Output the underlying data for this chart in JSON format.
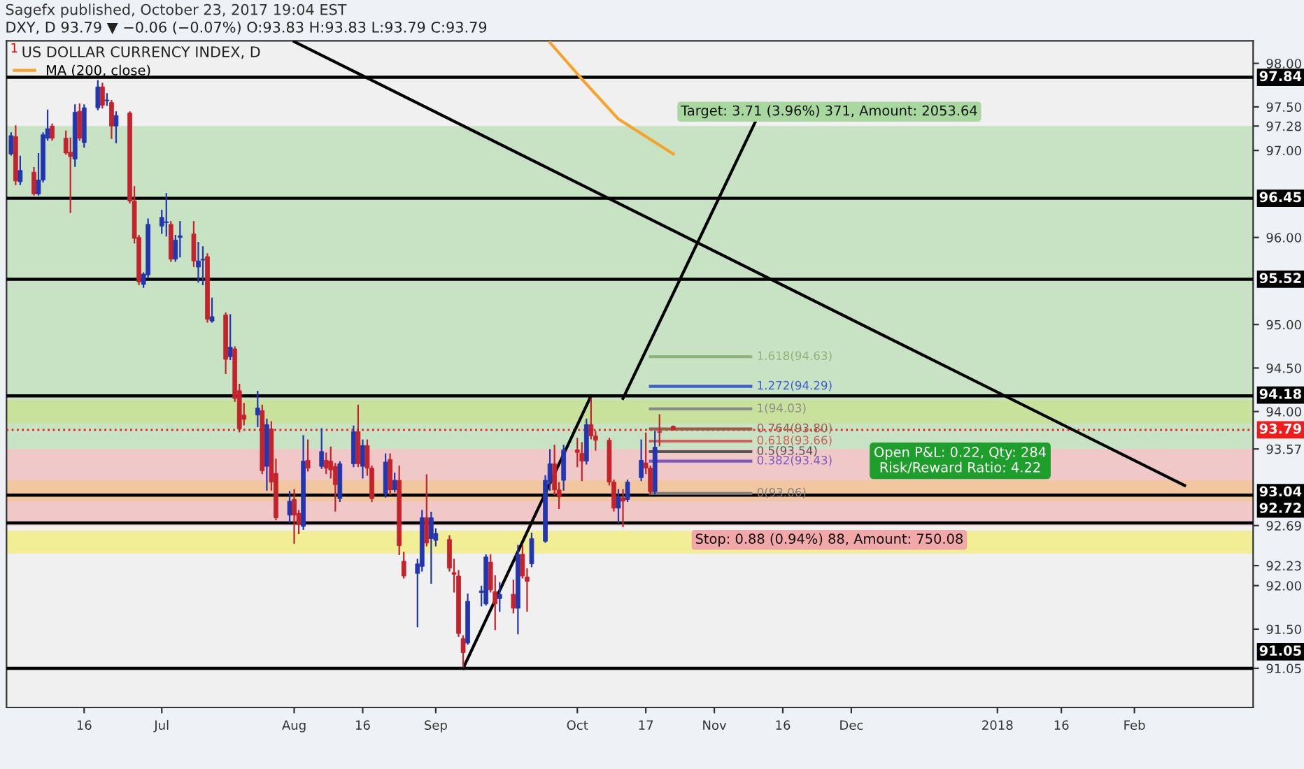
{
  "chart_data": {
    "type": "candlestick",
    "title": "US DOLLAR CURRENCY INDEX, D",
    "subtitle": "DXY, D 93.79 ▼ −0.06 (−0.07%) O:93.83 H:93.83 L:93.79 C:93.79",
    "annotations": [
      "Sagefx published, October 23, 2017 19:04 EST",
      "1",
      "Open P&L: 0.22, Qty: 284\nRisk/Reward Ratio: 4.22"
    ],
    "colors": [
      "#2236b0",
      "#c4232b",
      "#2236b0",
      "#c4232b",
      "#2236b0",
      "#2236b0",
      "#2236b0",
      "#c4232b",
      "#c4232b",
      "#c4232b",
      "#2236b0",
      "#c4232b",
      "#2236b0",
      "#2236b0",
      "#c4232b",
      "#2236b0",
      "#c4232b",
      "#2236b0",
      "#c4232b",
      "#c4232b",
      "#c4232b",
      "#2236b0",
      "#2236b0",
      "#2236b0",
      "#2236b0",
      "#c4232b",
      "#2236b0",
      "#2236b0",
      "#c4232b",
      "#2236b0",
      "#2236b0",
      "#c4232b",
      "#2236b0",
      "#c4232b",
      "#2236b0",
      "#c4232b",
      "#c4232b",
      "#c4232b",
      "#2236b0",
      "#c4232b",
      "#2236b0",
      "#c4232b",
      "#c4232b",
      "#2236b0",
      "#c4232b",
      "#c4232b",
      "#2236b0",
      "#c4232b",
      "#2236b0",
      "#c4232b",
      "#c4232b",
      "#c4232b",
      "#2236b0",
      "#2236b0",
      "#c4232b",
      "#2236b0",
      "#c4232b",
      "#c4232b",
      "#2236b0",
      "#c4232b",
      "#2236b0",
      "#c4232b",
      "#c4232b",
      "#2236b0",
      "#2236b0",
      "#c4232b",
      "#2236b0",
      "#2236b0",
      "#c4232b",
      "#c4232b",
      "#c4232b",
      "#c4232b",
      "#2236b0",
      "#2236b0",
      "#2236b0",
      "#c4232b",
      "#c4232b",
      "#2236b0",
      "#c4232b",
      "#2236b0",
      "#c4232b",
      "#c4232b",
      "#2236b0",
      "#2236b0",
      "#2236b0",
      "#c4232b",
      "#c4232b",
      "#2236b0",
      "#c4232b",
      "#c4232b",
      "#2236b0",
      "#c4232b",
      "#c4232b",
      "#c4232b",
      "#c4232b",
      "#2236b0",
      "#c4232b",
      "#2236b0",
      "#2236b0",
      "#c4232b",
      "#c4232b",
      "#2236b0",
      "#c4232b",
      "#c4232b"
    ],
    "x": [
      "2017-05-31",
      "2017-06-01",
      "2017-06-02",
      "2017-06-05",
      "2017-06-06",
      "2017-06-07",
      "2017-06-08",
      "2017-06-09",
      "2017-06-12",
      "2017-06-13",
      "2017-06-14",
      "2017-06-15",
      "2017-06-16",
      "2017-06-19",
      "2017-06-20",
      "2017-06-21",
      "2017-06-22",
      "2017-06-23",
      "2017-06-26",
      "2017-06-27",
      "2017-06-28",
      "2017-06-29",
      "2017-06-30",
      "2017-07-03",
      "2017-07-04",
      "2017-07-05",
      "2017-07-06",
      "2017-07-07",
      "2017-07-10",
      "2017-07-11",
      "2017-07-12",
      "2017-07-13",
      "2017-07-14",
      "2017-07-17",
      "2017-07-18",
      "2017-07-19",
      "2017-07-20",
      "2017-07-21",
      "2017-07-24",
      "2017-07-25",
      "2017-07-26",
      "2017-07-27",
      "2017-07-28",
      "2017-07-31",
      "2017-08-01",
      "2017-08-02",
      "2017-08-03",
      "2017-08-04",
      "2017-08-07",
      "2017-08-08",
      "2017-08-09",
      "2017-08-10",
      "2017-08-11",
      "2017-08-14",
      "2017-08-15",
      "2017-08-16",
      "2017-08-17",
      "2017-08-18",
      "2017-08-21",
      "2017-08-22",
      "2017-08-23",
      "2017-08-24",
      "2017-08-25",
      "2017-08-28",
      "2017-08-29",
      "2017-08-30",
      "2017-08-31",
      "2017-09-01",
      "2017-09-04",
      "2017-09-05",
      "2017-09-06",
      "2017-09-07",
      "2017-09-08",
      "2017-09-11",
      "2017-09-12",
      "2017-09-13",
      "2017-09-14",
      "2017-09-15",
      "2017-09-18",
      "2017-09-19",
      "2017-09-20",
      "2017-09-21",
      "2017-09-22",
      "2017-09-25",
      "2017-09-26",
      "2017-09-27",
      "2017-09-28",
      "2017-09-29",
      "2017-10-02",
      "2017-10-03",
      "2017-10-04",
      "2017-10-05",
      "2017-10-06",
      "2017-10-09",
      "2017-10-10",
      "2017-10-11",
      "2017-10-12",
      "2017-10-13",
      "2017-10-16",
      "2017-10-17",
      "2017-10-18",
      "2017-10-19",
      "2017-10-20",
      "2017-10-23"
    ],
    "ohlc": [
      [
        96.96,
        97.2,
        96.95,
        97.17
      ],
      [
        97.16,
        97.28,
        96.61,
        96.65
      ],
      [
        96.64,
        96.93,
        96.61,
        96.77
      ],
      [
        96.75,
        96.8,
        96.49,
        96.5
      ],
      [
        96.5,
        96.96,
        96.49,
        96.66
      ],
      [
        96.66,
        97.2,
        96.64,
        97.18
      ],
      [
        97.14,
        97.46,
        97.12,
        97.25
      ],
      [
        97.28,
        97.3,
        97.12,
        97.14
      ],
      [
        97.14,
        97.22,
        96.96,
        96.97
      ],
      [
        96.98,
        97.14,
        96.29,
        96.93
      ],
      [
        96.9,
        97.52,
        96.82,
        97.44
      ],
      [
        97.45,
        97.53,
        97.12,
        97.14
      ],
      [
        97.09,
        97.52,
        97.04,
        97.49
      ],
      [
        97.49,
        97.8,
        97.47,
        97.73
      ],
      [
        97.73,
        97.77,
        97.49,
        97.52
      ],
      [
        97.57,
        97.65,
        97.52,
        97.58
      ],
      [
        97.55,
        97.57,
        97.14,
        97.28
      ],
      [
        97.28,
        97.44,
        97.09,
        97.4
      ],
      [
        97.43,
        97.44,
        96.4,
        96.42
      ],
      [
        96.42,
        96.58,
        95.94,
        95.99
      ],
      [
        96.0,
        96.02,
        95.46,
        95.49
      ],
      [
        95.46,
        95.59,
        95.43,
        95.58
      ],
      [
        95.57,
        96.21,
        95.55,
        96.15
      ],
      [
        96.13,
        96.31,
        96.05,
        96.23
      ],
      [
        96.17,
        96.5,
        96.02,
        96.18
      ],
      [
        96.15,
        96.18,
        95.73,
        95.75
      ],
      [
        95.75,
        96.02,
        95.73,
        95.97
      ],
      [
        96.0,
        96.18,
        95.78,
        96.02
      ],
      [
        96.04,
        96.18,
        95.67,
        95.73
      ],
      [
        95.66,
        95.94,
        95.49,
        95.73
      ],
      [
        95.74,
        95.89,
        95.46,
        95.75
      ],
      [
        95.78,
        95.81,
        95.03,
        95.06
      ],
      [
        95.04,
        95.3,
        95.03,
        95.09
      ],
      [
        95.11,
        95.13,
        94.44,
        94.6
      ],
      [
        94.63,
        95.11,
        94.6,
        94.74
      ],
      [
        94.72,
        94.74,
        94.12,
        94.15
      ],
      [
        94.24,
        94.31,
        93.77,
        93.8
      ],
      [
        93.96,
        94.09,
        93.85,
        93.91
      ],
      [
        93.96,
        94.23,
        93.83,
        94.04
      ],
      [
        94.01,
        94.07,
        93.29,
        93.32
      ],
      [
        93.37,
        93.91,
        93.1,
        93.85
      ],
      [
        93.8,
        93.88,
        93.1,
        93.19
      ],
      [
        93.29,
        93.45,
        92.76,
        92.78
      ],
      [
        92.81,
        93.08,
        92.73,
        92.97
      ],
      [
        92.99,
        93.1,
        92.49,
        92.81
      ],
      [
        92.83,
        92.86,
        92.6,
        92.7
      ],
      [
        92.68,
        93.72,
        92.65,
        93.43
      ],
      [
        93.44,
        93.67,
        93.32,
        93.35
      ],
      [
        93.37,
        93.8,
        93.35,
        93.54
      ],
      [
        93.44,
        93.52,
        93.29,
        93.35
      ],
      [
        93.43,
        93.59,
        93.24,
        93.33
      ],
      [
        93.37,
        93.4,
        92.86,
        93.16
      ],
      [
        93.0,
        93.42,
        92.97,
        93.4
      ],
      [
        93.4,
        93.83,
        93.37,
        93.77
      ],
      [
        93.77,
        94.07,
        93.37,
        93.4
      ],
      [
        93.37,
        93.67,
        93.24,
        93.61
      ],
      [
        93.61,
        93.67,
        93.27,
        93.35
      ],
      [
        93.35,
        93.37,
        92.97,
        93.0
      ],
      [
        93.05,
        93.51,
        93.02,
        93.42
      ],
      [
        93.45,
        93.51,
        93.05,
        93.1
      ],
      [
        93.1,
        93.29,
        93.08,
        93.21
      ],
      [
        93.21,
        93.37,
        92.36,
        92.46
      ],
      [
        92.28,
        92.38,
        92.09,
        92.11
      ],
      [
        92.14,
        92.3,
        91.53,
        92.25
      ],
      [
        92.22,
        92.86,
        92.17,
        92.78
      ],
      [
        92.78,
        93.27,
        92.46,
        92.49
      ],
      [
        92.54,
        92.84,
        92.03,
        92.78
      ],
      [
        92.52,
        92.65,
        92.46,
        92.6
      ],
      [
        92.53,
        92.57,
        92.17,
        92.2
      ],
      [
        92.15,
        92.3,
        91.93,
        92.13
      ],
      [
        92.11,
        92.17,
        91.42,
        91.45
      ],
      [
        91.39,
        91.42,
        91.07,
        91.23
      ],
      [
        91.34,
        91.9,
        91.33,
        91.82
      ],
      [
        91.92,
        91.99,
        91.77,
        91.94
      ],
      [
        91.79,
        92.35,
        91.78,
        92.33
      ],
      [
        92.27,
        92.35,
        91.93,
        91.95
      ],
      [
        91.93,
        92.11,
        91.5,
        91.79
      ],
      [
        91.85,
        92.03,
        91.71,
        91.9
      ],
      [
        91.9,
        92.06,
        91.69,
        91.74
      ],
      [
        91.74,
        92.46,
        91.45,
        92.36
      ],
      [
        92.36,
        92.46,
        92.09,
        92.11
      ],
      [
        92.1,
        92.19,
        91.71,
        92.05
      ],
      [
        92.25,
        92.6,
        92.22,
        92.54
      ],
      [
        92.51,
        93.26,
        92.5,
        93.21
      ],
      [
        93.19,
        93.56,
        93.1,
        93.4
      ],
      [
        93.4,
        93.61,
        93.05,
        93.1
      ],
      [
        93.1,
        93.18,
        92.89,
        93.02
      ],
      [
        93.21,
        93.61,
        93.1,
        93.56
      ],
      [
        93.56,
        93.69,
        93.37,
        93.53
      ],
      [
        93.52,
        93.64,
        93.21,
        93.43
      ],
      [
        93.43,
        93.91,
        93.4,
        93.85
      ],
      [
        93.85,
        94.15,
        93.69,
        93.72
      ],
      [
        93.72,
        93.77,
        93.56,
        93.67
      ],
      [
        93.67,
        93.69,
        93.16,
        93.19
      ],
      [
        93.19,
        93.21,
        92.86,
        92.89
      ],
      [
        92.89,
        93.1,
        92.73,
        93.02
      ],
      [
        93.01,
        93.1,
        92.68,
        92.97
      ],
      [
        92.99,
        93.21,
        92.97,
        93.19
      ],
      [
        93.24,
        93.67,
        93.21,
        93.44
      ],
      [
        93.41,
        93.75,
        93.29,
        93.35
      ],
      [
        93.35,
        93.37,
        93.05,
        93.08
      ],
      [
        93.08,
        93.77,
        93.06,
        93.59
      ],
      [
        93.77,
        93.96,
        93.61,
        93.76
      ],
      [
        93.83,
        93.83,
        93.79,
        93.79
      ]
    ],
    "series": [
      {
        "type": "line",
        "color": "#000000",
        "x": [
          "2017-09-07",
          "2017-10-05"
        ],
        "values": [
          91.05,
          94.18
        ]
      },
      {
        "type": "line",
        "color": "#000000",
        "x": [
          "2017-10-12",
          "2017-11-10"
        ],
        "values": [
          94.15,
          97.33
        ]
      },
      {
        "type": "line",
        "color": "#000000",
        "x": [
          "2017-08-01",
          "2018-02-12"
        ],
        "values": [
          98.25,
          93.15
        ]
      },
      {
        "type": "line",
        "name": "MA (200, close)",
        "color": "#f6a32a",
        "x": [
          "2017-09-26",
          "2017-10-03",
          "2017-10-11",
          "2017-10-23"
        ],
        "values": [
          98.24,
          97.82,
          97.36,
          96.96
        ]
      },
      {
        "type": "line",
        "name": "1.618(94.63)",
        "color": "#8fb27a",
        "x": [
          "2017-10-18",
          "2017-11-09"
        ],
        "values": [
          94.63,
          94.63
        ]
      },
      {
        "type": "line",
        "name": "1.272(94.29)",
        "color": "#3c5ccf",
        "x": [
          "2017-10-18",
          "2017-11-09"
        ],
        "values": [
          94.29,
          94.29
        ]
      },
      {
        "type": "line",
        "name": "1(94.03)",
        "color": "#8a8a8a",
        "x": [
          "2017-10-18",
          "2017-11-09"
        ],
        "values": [
          94.03,
          94.03
        ]
      },
      {
        "type": "line",
        "name": "0.764(93.80)",
        "color": "#9c5a4a",
        "x": [
          "2017-10-18",
          "2017-11-09"
        ],
        "values": [
          93.8,
          93.8
        ]
      },
      {
        "type": "line",
        "name": "0.618(93.66)",
        "color": "#d06060",
        "x": [
          "2017-10-18",
          "2017-11-09"
        ],
        "values": [
          93.66,
          93.66
        ]
      },
      {
        "type": "line",
        "name": "0.5(93.54)",
        "color": "#555555",
        "x": [
          "2017-10-18",
          "2017-11-09"
        ],
        "values": [
          93.54,
          93.54
        ]
      },
      {
        "type": "line",
        "name": "0.382(93.43)",
        "color": "#7e57c2",
        "x": [
          "2017-10-18",
          "2017-11-09"
        ],
        "values": [
          93.43,
          93.43
        ]
      },
      {
        "type": "line",
        "name": "0(93.06)",
        "color": "#808080",
        "x": [
          "2017-10-18",
          "2017-11-09"
        ],
        "values": [
          93.06,
          93.06
        ]
      }
    ],
    "bands": [
      {
        "axis": "y",
        "from": 93.86,
        "to": 94.13,
        "color": "#f2ec4a"
      },
      {
        "axis": "y",
        "from": 92.97,
        "to": 93.21,
        "color": "#f2ec4a"
      },
      {
        "axis": "y",
        "from": 92.37,
        "to": 92.63,
        "color": "#f2ec4a"
      },
      {
        "axis": "y",
        "from": 93.57,
        "to": 97.28,
        "color": "#a8d8a0",
        "label": "Target: 3.71 (3.96%) 371, Amount: 2053.64"
      },
      {
        "axis": "y",
        "from": 92.69,
        "to": 93.57,
        "color": "#f2a8a8",
        "label": "Stop: 0.88 (0.94%) 88, Amount: 750.08"
      }
    ],
    "ref_lines": [
      {
        "axis": "y",
        "value": 97.84,
        "label": "97.84",
        "color": "#000000"
      },
      {
        "axis": "y",
        "value": 96.45,
        "label": "96.45",
        "color": "#000000"
      },
      {
        "axis": "y",
        "value": 95.52,
        "label": "95.52",
        "color": "#000000"
      },
      {
        "axis": "y",
        "value": 94.18,
        "label": "94.18",
        "color": "#000000"
      },
      {
        "axis": "y",
        "value": 93.79,
        "label": "93.79",
        "color": "#f01c1c",
        "line_style": "dotted"
      },
      {
        "axis": "y",
        "value": 93.04,
        "label": "93.04",
        "color": "#000000"
      },
      {
        "axis": "y",
        "value": 92.72,
        "label": "92.72",
        "color": "#000000"
      },
      {
        "axis": "y",
        "value": 91.05,
        "label": "91.05",
        "color": "#000000"
      }
    ],
    "xlim": [
      "2017-05-30",
      "2018-02-27"
    ],
    "xticks": [
      {
        "value": "2017-06-16",
        "label": "16"
      },
      {
        "value": "2017-07-03",
        "label": "Jul"
      },
      {
        "value": "2017-08-01",
        "label": "Aug"
      },
      {
        "value": "2017-08-16",
        "label": "16"
      },
      {
        "value": "2017-09-01",
        "label": "Sep"
      },
      {
        "value": "2017-10-02",
        "label": "Oct"
      },
      {
        "value": "2017-10-17",
        "label": "17"
      },
      {
        "value": "2017-11-01",
        "label": "Nov"
      },
      {
        "value": "2017-11-16",
        "label": "16"
      },
      {
        "value": "2017-12-01",
        "label": "Dec"
      },
      {
        "value": "2018-01-02",
        "label": "2018"
      },
      {
        "value": "2018-01-16",
        "label": "16"
      },
      {
        "value": "2018-02-01",
        "label": "Feb"
      }
    ],
    "ylim": [
      90.6,
      98.26
    ],
    "yticks": [
      {
        "value": 91.05,
        "label": "91.05"
      },
      {
        "value": 91.5,
        "label": "91.50"
      },
      {
        "value": 92,
        "label": "92.00"
      },
      {
        "value": 92.23,
        "label": "92.23"
      },
      {
        "value": 92.69,
        "label": "92.69"
      },
      {
        "value": 93.57,
        "label": "93.57"
      },
      {
        "value": 94,
        "label": "94.00"
      },
      {
        "value": 94.5,
        "label": "94.50"
      },
      {
        "value": 95,
        "label": "95.00"
      },
      {
        "value": 96,
        "label": "96.00"
      },
      {
        "value": 97,
        "label": "97.00"
      },
      {
        "value": 97.28,
        "label": "97.28"
      },
      {
        "value": 97.5,
        "label": "97.50"
      },
      {
        "value": 98,
        "label": "98.00"
      }
    ],
    "legend": "top left"
  }
}
